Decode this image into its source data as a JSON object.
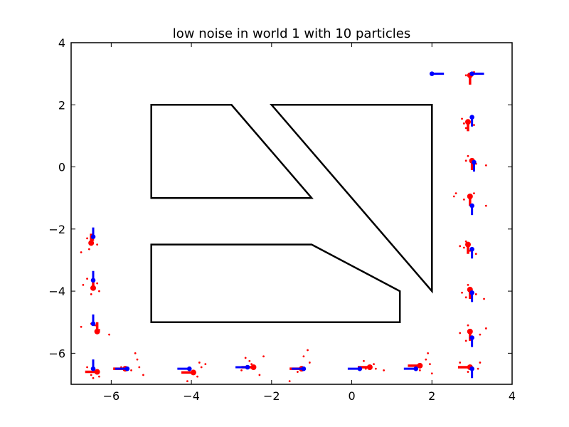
{
  "chart_data": {
    "type": "scatter",
    "title": "low noise in world 1 with 10 particles",
    "xlabel": "",
    "ylabel": "",
    "xlim": [
      -7,
      4
    ],
    "ylim": [
      -7,
      4
    ],
    "x_ticks": [
      -6,
      -4,
      -2,
      0,
      2,
      4
    ],
    "y_ticks": [
      -6,
      -4,
      -2,
      0,
      2,
      4
    ],
    "x_tick_labels": [
      "−6",
      "−4",
      "−2",
      "0",
      "2",
      "4"
    ],
    "y_tick_labels": [
      "−6",
      "−4",
      "−2",
      "0",
      "2",
      "4"
    ],
    "grid": false,
    "legend": "none",
    "colors": {
      "walls": "#000000",
      "true_pose": "#0000ff",
      "estimate": "#ff0000",
      "particles": "#ff0000"
    },
    "walls": [
      {
        "name": "upper-left-block",
        "points": [
          [
            -5,
            2
          ],
          [
            -3,
            2
          ],
          [
            -1,
            -1
          ],
          [
            -5,
            -1
          ]
        ]
      },
      {
        "name": "triangle-block",
        "points": [
          [
            -2,
            2
          ],
          [
            2,
            2
          ],
          [
            2,
            -4
          ]
        ]
      },
      {
        "name": "lower-block",
        "points": [
          [
            -5,
            -2.5
          ],
          [
            -1,
            -2.5
          ],
          [
            1.2,
            -4
          ],
          [
            1.2,
            -5
          ],
          [
            -5,
            -5
          ]
        ]
      }
    ],
    "steps": [
      {
        "true_pose": [
          -6.45,
          -2.25
        ],
        "true_dir": [
          0,
          1
        ],
        "estimate": [
          -6.5,
          -2.45
        ],
        "est_dir": [
          0,
          1
        ],
        "particles": [
          [
            -6.75,
            -2.75
          ],
          [
            -6.55,
            -2.65
          ],
          [
            -6.35,
            -2.5
          ],
          [
            -6.45,
            -2.35
          ],
          [
            -6.6,
            -2.3
          ]
        ]
      },
      {
        "true_pose": [
          -6.45,
          -3.65
        ],
        "true_dir": [
          0,
          1
        ],
        "estimate": [
          -6.45,
          -3.9
        ],
        "est_dir": [
          0,
          1
        ],
        "particles": [
          [
            -6.7,
            -3.8
          ],
          [
            -6.3,
            -4.0
          ],
          [
            -6.5,
            -4.1
          ],
          [
            -6.35,
            -3.75
          ],
          [
            -6.6,
            -3.6
          ]
        ]
      },
      {
        "true_pose": [
          -6.45,
          -5.05
        ],
        "true_dir": [
          0,
          1
        ],
        "estimate": [
          -6.35,
          -5.3
        ],
        "est_dir": [
          0,
          1
        ],
        "particles": [
          [
            -6.75,
            -5.15
          ],
          [
            -6.5,
            -5.05
          ],
          [
            -6.3,
            -5.25
          ],
          [
            -6.05,
            -5.4
          ],
          [
            -6.4,
            -5.1
          ]
        ]
      },
      {
        "true_pose": [
          -6.45,
          -6.5
        ],
        "true_dir": [
          0,
          1
        ],
        "estimate": [
          -6.35,
          -6.6
        ],
        "est_dir": [
          -1,
          0
        ],
        "particles": [
          [
            -6.6,
            -6.45
          ],
          [
            -6.3,
            -6.75
          ],
          [
            -6.5,
            -6.7
          ],
          [
            -6.35,
            -6.55
          ],
          [
            -6.45,
            -6.8
          ]
        ]
      },
      {
        "true_pose": [
          -5.6,
          -6.5
        ],
        "true_dir": [
          -1,
          0
        ],
        "estimate": [
          -5.65,
          -6.5
        ],
        "est_dir": [
          -1,
          0
        ],
        "particles": [
          [
            -5.4,
            -6.0
          ],
          [
            -5.35,
            -6.2
          ],
          [
            -5.2,
            -6.7
          ],
          [
            -5.5,
            -6.55
          ],
          [
            -5.3,
            -6.45
          ],
          [
            -5.75,
            -6.45
          ]
        ]
      },
      {
        "true_pose": [
          -4.05,
          -6.5
        ],
        "true_dir": [
          -1,
          0
        ],
        "estimate": [
          -3.95,
          -6.62
        ],
        "est_dir": [
          -1,
          0
        ],
        "particles": [
          [
            -3.8,
            -6.3
          ],
          [
            -3.75,
            -6.45
          ],
          [
            -3.65,
            -6.35
          ],
          [
            -4.1,
            -6.9
          ],
          [
            -3.85,
            -6.75
          ]
        ]
      },
      {
        "true_pose": [
          -2.6,
          -6.45
        ],
        "true_dir": [
          -1,
          0
        ],
        "estimate": [
          -2.45,
          -6.45
        ],
        "est_dir": [
          -1,
          0
        ],
        "particles": [
          [
            -2.65,
            -6.15
          ],
          [
            -2.55,
            -6.25
          ],
          [
            -2.2,
            -6.1
          ],
          [
            -2.3,
            -6.7
          ],
          [
            -2.5,
            -6.35
          ],
          [
            -2.75,
            -6.55
          ]
        ]
      },
      {
        "true_pose": [
          -1.2,
          -6.5
        ],
        "true_dir": [
          -1,
          0
        ],
        "estimate": [
          -1.25,
          -6.5
        ],
        "est_dir": [
          -1,
          0
        ],
        "particles": [
          [
            -1.1,
            -5.9
          ],
          [
            -1.2,
            -6.1
          ],
          [
            -1.05,
            -6.3
          ],
          [
            -1.55,
            -6.9
          ],
          [
            -1.35,
            -6.6
          ]
        ]
      },
      {
        "true_pose": [
          0.2,
          -6.5
        ],
        "true_dir": [
          -1,
          0
        ],
        "estimate": [
          0.45,
          -6.45
        ],
        "est_dir": [
          -1,
          0
        ],
        "particles": [
          [
            0.3,
            -6.25
          ],
          [
            0.55,
            -6.35
          ],
          [
            0.6,
            -6.5
          ],
          [
            0.8,
            -6.55
          ],
          [
            0.35,
            -6.5
          ]
        ]
      },
      {
        "true_pose": [
          1.6,
          -6.5
        ],
        "true_dir": [
          -1,
          0
        ],
        "estimate": [
          1.7,
          -6.4
        ],
        "est_dir": [
          -1,
          0
        ],
        "particles": [
          [
            1.9,
            -6.0
          ],
          [
            1.85,
            -6.2
          ],
          [
            1.95,
            -6.35
          ],
          [
            1.7,
            -6.55
          ],
          [
            2.0,
            -6.65
          ]
        ]
      },
      {
        "true_pose": [
          3.0,
          -6.5
        ],
        "true_dir": [
          0,
          -1
        ],
        "estimate": [
          2.95,
          -6.45
        ],
        "est_dir": [
          -1,
          0
        ],
        "particles": [
          [
            2.7,
            -6.3
          ],
          [
            3.2,
            -6.3
          ],
          [
            2.9,
            -6.6
          ],
          [
            3.15,
            -6.5
          ],
          [
            2.8,
            -6.45
          ]
        ]
      },
      {
        "true_pose": [
          3.0,
          -5.5
        ],
        "true_dir": [
          0,
          -1
        ],
        "estimate": [
          2.95,
          -5.3
        ],
        "est_dir": [
          0,
          -1
        ],
        "particles": [
          [
            3.35,
            -5.2
          ],
          [
            2.7,
            -5.35
          ],
          [
            2.85,
            -5.6
          ],
          [
            3.2,
            -5.4
          ],
          [
            2.9,
            -5.1
          ]
        ]
      },
      {
        "true_pose": [
          3.0,
          -4.05
        ],
        "true_dir": [
          0,
          -1
        ],
        "estimate": [
          2.95,
          -3.95
        ],
        "est_dir": [
          0,
          -1
        ],
        "particles": [
          [
            3.3,
            -4.25
          ],
          [
            2.75,
            -4.05
          ],
          [
            2.9,
            -3.8
          ],
          [
            3.1,
            -4.1
          ],
          [
            2.85,
            -4.2
          ]
        ]
      },
      {
        "true_pose": [
          3.0,
          -2.65
        ],
        "true_dir": [
          0,
          -1
        ],
        "estimate": [
          2.9,
          -2.5
        ],
        "est_dir": [
          0,
          -1
        ],
        "particles": [
          [
            2.7,
            -2.55
          ],
          [
            3.1,
            -2.8
          ],
          [
            2.85,
            -2.4
          ],
          [
            2.95,
            -2.7
          ],
          [
            2.8,
            -2.6
          ]
        ]
      },
      {
        "true_pose": [
          3.0,
          -1.25
        ],
        "true_dir": [
          0,
          -1
        ],
        "estimate": [
          2.95,
          -0.95
        ],
        "est_dir": [
          0,
          -1
        ],
        "particles": [
          [
            2.55,
            -0.95
          ],
          [
            2.6,
            -0.85
          ],
          [
            3.35,
            -1.25
          ],
          [
            2.8,
            -1.05
          ],
          [
            3.05,
            -0.85
          ]
        ]
      },
      {
        "true_pose": [
          3.05,
          0.15
        ],
        "true_dir": [
          0,
          -1
        ],
        "estimate": [
          3.0,
          0.2
        ],
        "est_dir": [
          0,
          -1
        ],
        "particles": [
          [
            3.35,
            0.05
          ],
          [
            2.9,
            0.35
          ],
          [
            3.1,
            0.1
          ],
          [
            2.85,
            0.2
          ],
          [
            3.05,
            -0.05
          ]
        ]
      },
      {
        "true_pose": [
          3.0,
          1.6
        ],
        "true_dir": [
          0,
          -1
        ],
        "estimate": [
          2.9,
          1.45
        ],
        "est_dir": [
          0,
          -1
        ],
        "particles": [
          [
            2.75,
            1.55
          ],
          [
            3.05,
            1.35
          ],
          [
            2.85,
            1.25
          ],
          [
            3.0,
            1.5
          ],
          [
            2.8,
            1.4
          ]
        ]
      },
      {
        "true_pose": [
          3.0,
          3.0
        ],
        "true_dir": [
          1,
          0
        ],
        "estimate": [
          2.95,
          2.95
        ],
        "est_dir": [
          0,
          -1
        ],
        "particles": [
          [
            2.85,
            2.95
          ],
          [
            3.05,
            3.05
          ],
          [
            2.95,
            3.0
          ]
        ]
      },
      {
        "true_pose": [
          2.0,
          3.0
        ],
        "true_dir": [
          1,
          0
        ],
        "estimate": null,
        "est_dir": null,
        "particles": []
      }
    ]
  }
}
